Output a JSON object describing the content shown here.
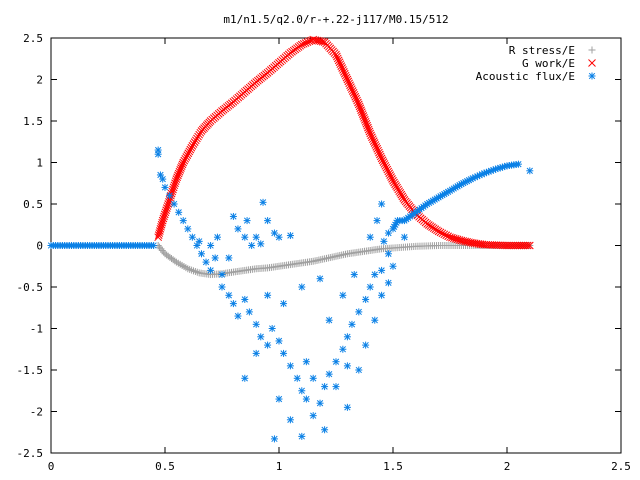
{
  "chart_data": {
    "type": "scatter",
    "title": "m1/n1.5/q2.0/r-+.22-j117/M0.15/512",
    "xlabel": "",
    "ylabel": "",
    "xlim": [
      0,
      2.5
    ],
    "ylim": [
      -2.5,
      2.5
    ],
    "x_ticks": [
      "0",
      "0.5",
      "1",
      "1.5",
      "2",
      "2.5"
    ],
    "y_ticks": [
      "2.5",
      "2",
      "1.5",
      "1",
      "0.5",
      "0",
      "-0.5",
      "-1",
      "-1.5",
      "-2",
      "-2.5"
    ],
    "grid": false,
    "legend_position": "top-right",
    "series": [
      {
        "name": "R stress/E",
        "marker": "plus",
        "color": "#a0a0a0",
        "points": [
          [
            0.47,
            0.0
          ],
          [
            0.5,
            -0.1
          ],
          [
            0.55,
            -0.2
          ],
          [
            0.6,
            -0.28
          ],
          [
            0.65,
            -0.33
          ],
          [
            0.7,
            -0.35
          ],
          [
            0.75,
            -0.34
          ],
          [
            0.8,
            -0.32
          ],
          [
            0.85,
            -0.3
          ],
          [
            0.9,
            -0.28
          ],
          [
            0.95,
            -0.27
          ],
          [
            1.0,
            -0.25
          ],
          [
            1.05,
            -0.23
          ],
          [
            1.1,
            -0.21
          ],
          [
            1.15,
            -0.19
          ],
          [
            1.2,
            -0.16
          ],
          [
            1.25,
            -0.13
          ],
          [
            1.3,
            -0.1
          ],
          [
            1.35,
            -0.08
          ],
          [
            1.4,
            -0.06
          ],
          [
            1.45,
            -0.04
          ],
          [
            1.5,
            -0.03
          ],
          [
            1.6,
            -0.01
          ],
          [
            1.7,
            0.0
          ],
          [
            1.8,
            0.0
          ],
          [
            1.9,
            0.0
          ],
          [
            2.0,
            0.0
          ],
          [
            2.1,
            0.0
          ]
        ]
      },
      {
        "name": "G work/E",
        "marker": "cross",
        "color": "#ff0000",
        "points": [
          [
            0.47,
            0.1
          ],
          [
            0.49,
            0.3
          ],
          [
            0.52,
            0.55
          ],
          [
            0.55,
            0.8
          ],
          [
            0.58,
            1.0
          ],
          [
            0.62,
            1.2
          ],
          [
            0.66,
            1.38
          ],
          [
            0.7,
            1.5
          ],
          [
            0.75,
            1.62
          ],
          [
            0.8,
            1.73
          ],
          [
            0.85,
            1.85
          ],
          [
            0.9,
            1.97
          ],
          [
            0.95,
            2.08
          ],
          [
            1.0,
            2.2
          ],
          [
            1.05,
            2.32
          ],
          [
            1.1,
            2.42
          ],
          [
            1.15,
            2.48
          ],
          [
            1.2,
            2.45
          ],
          [
            1.25,
            2.3
          ],
          [
            1.3,
            2.0
          ],
          [
            1.35,
            1.7
          ],
          [
            1.4,
            1.35
          ],
          [
            1.45,
            1.05
          ],
          [
            1.5,
            0.78
          ],
          [
            1.55,
            0.55
          ],
          [
            1.6,
            0.38
          ],
          [
            1.65,
            0.26
          ],
          [
            1.7,
            0.17
          ],
          [
            1.75,
            0.1
          ],
          [
            1.8,
            0.06
          ],
          [
            1.85,
            0.03
          ],
          [
            1.9,
            0.01
          ],
          [
            2.0,
            0.0
          ],
          [
            2.1,
            0.0
          ]
        ]
      },
      {
        "name": "Acoustic flux/E",
        "marker": "star",
        "color": "#0a80e6",
        "points": [
          [
            0.0,
            0.0
          ],
          [
            0.05,
            0.0
          ],
          [
            0.1,
            0.0
          ],
          [
            0.15,
            0.0
          ],
          [
            0.2,
            0.0
          ],
          [
            0.25,
            0.0
          ],
          [
            0.3,
            0.0
          ],
          [
            0.35,
            0.0
          ],
          [
            0.4,
            0.0
          ],
          [
            0.45,
            0.0
          ],
          [
            0.47,
            1.1
          ],
          [
            0.47,
            1.15
          ],
          [
            0.48,
            0.85
          ],
          [
            0.49,
            0.8
          ],
          [
            0.5,
            0.7
          ],
          [
            0.52,
            0.6
          ],
          [
            0.54,
            0.5
          ],
          [
            0.56,
            0.4
          ],
          [
            0.58,
            0.3
          ],
          [
            0.6,
            0.2
          ],
          [
            0.62,
            0.1
          ],
          [
            0.64,
            0.0
          ],
          [
            0.66,
            -0.1
          ],
          [
            0.68,
            -0.2
          ],
          [
            0.7,
            -0.3
          ],
          [
            0.65,
            0.05
          ],
          [
            0.7,
            0.0
          ],
          [
            0.72,
            -0.15
          ],
          [
            0.75,
            -0.35
          ],
          [
            0.73,
            0.1
          ],
          [
            0.8,
            0.35
          ],
          [
            0.82,
            0.2
          ],
          [
            0.85,
            0.1
          ],
          [
            0.88,
            0.0
          ],
          [
            0.86,
            0.3
          ],
          [
            0.9,
            0.1
          ],
          [
            0.92,
            0.02
          ],
          [
            0.93,
            0.52
          ],
          [
            0.95,
            0.3
          ],
          [
            0.98,
            0.15
          ],
          [
            1.0,
            0.1
          ],
          [
            1.05,
            0.12
          ],
          [
            0.75,
            -0.5
          ],
          [
            0.78,
            -0.6
          ],
          [
            0.8,
            -0.7
          ],
          [
            0.82,
            -0.85
          ],
          [
            0.85,
            -0.65
          ],
          [
            0.87,
            -0.8
          ],
          [
            0.9,
            -0.95
          ],
          [
            0.92,
            -1.1
          ],
          [
            0.95,
            -1.2
          ],
          [
            0.97,
            -1.0
          ],
          [
            1.0,
            -1.15
          ],
          [
            1.02,
            -1.3
          ],
          [
            1.05,
            -1.45
          ],
          [
            1.08,
            -1.6
          ],
          [
            1.1,
            -1.75
          ],
          [
            1.12,
            -1.85
          ],
          [
            1.15,
            -2.05
          ],
          [
            1.18,
            -1.9
          ],
          [
            1.2,
            -1.7
          ],
          [
            1.22,
            -1.55
          ],
          [
            1.25,
            -1.4
          ],
          [
            1.28,
            -1.25
          ],
          [
            1.3,
            -1.1
          ],
          [
            1.32,
            -0.95
          ],
          [
            1.35,
            -0.8
          ],
          [
            1.38,
            -0.65
          ],
          [
            1.4,
            -0.5
          ],
          [
            1.42,
            -0.35
          ],
          [
            1.45,
            -0.3
          ],
          [
            1.48,
            -0.45
          ],
          [
            1.5,
            -0.25
          ],
          [
            1.48,
            -0.1
          ],
          [
            1.46,
            0.05
          ],
          [
            1.5,
            0.2
          ],
          [
            1.55,
            0.3
          ],
          [
            1.6,
            0.4
          ],
          [
            1.65,
            0.5
          ],
          [
            1.7,
            0.58
          ],
          [
            1.75,
            0.66
          ],
          [
            1.8,
            0.74
          ],
          [
            1.85,
            0.81
          ],
          [
            1.9,
            0.87
          ],
          [
            1.95,
            0.92
          ],
          [
            2.0,
            0.96
          ],
          [
            2.05,
            0.98
          ],
          [
            2.1,
            0.9
          ],
          [
            0.98,
            -2.33
          ],
          [
            1.1,
            -2.3
          ],
          [
            1.2,
            -2.22
          ],
          [
            1.05,
            -2.1
          ],
          [
            1.3,
            -1.95
          ],
          [
            0.85,
            -1.6
          ],
          [
            0.9,
            -1.3
          ],
          [
            1.0,
            -1.85
          ],
          [
            1.25,
            -1.7
          ],
          [
            1.35,
            -1.5
          ],
          [
            1.38,
            -1.2
          ],
          [
            1.3,
            -1.45
          ],
          [
            1.12,
            -1.4
          ],
          [
            1.15,
            -1.6
          ],
          [
            0.95,
            -0.6
          ],
          [
            1.02,
            -0.7
          ],
          [
            1.1,
            -0.5
          ],
          [
            1.18,
            -0.4
          ],
          [
            1.28,
            -0.6
          ],
          [
            1.33,
            -0.35
          ],
          [
            0.78,
            -0.15
          ],
          [
            1.22,
            -0.9
          ],
          [
            1.42,
            -0.9
          ],
          [
            1.45,
            -0.6
          ],
          [
            1.4,
            0.1
          ],
          [
            1.43,
            0.3
          ],
          [
            1.45,
            0.5
          ],
          [
            1.48,
            0.15
          ],
          [
            1.55,
            0.1
          ],
          [
            1.52,
            0.3
          ]
        ]
      }
    ]
  }
}
